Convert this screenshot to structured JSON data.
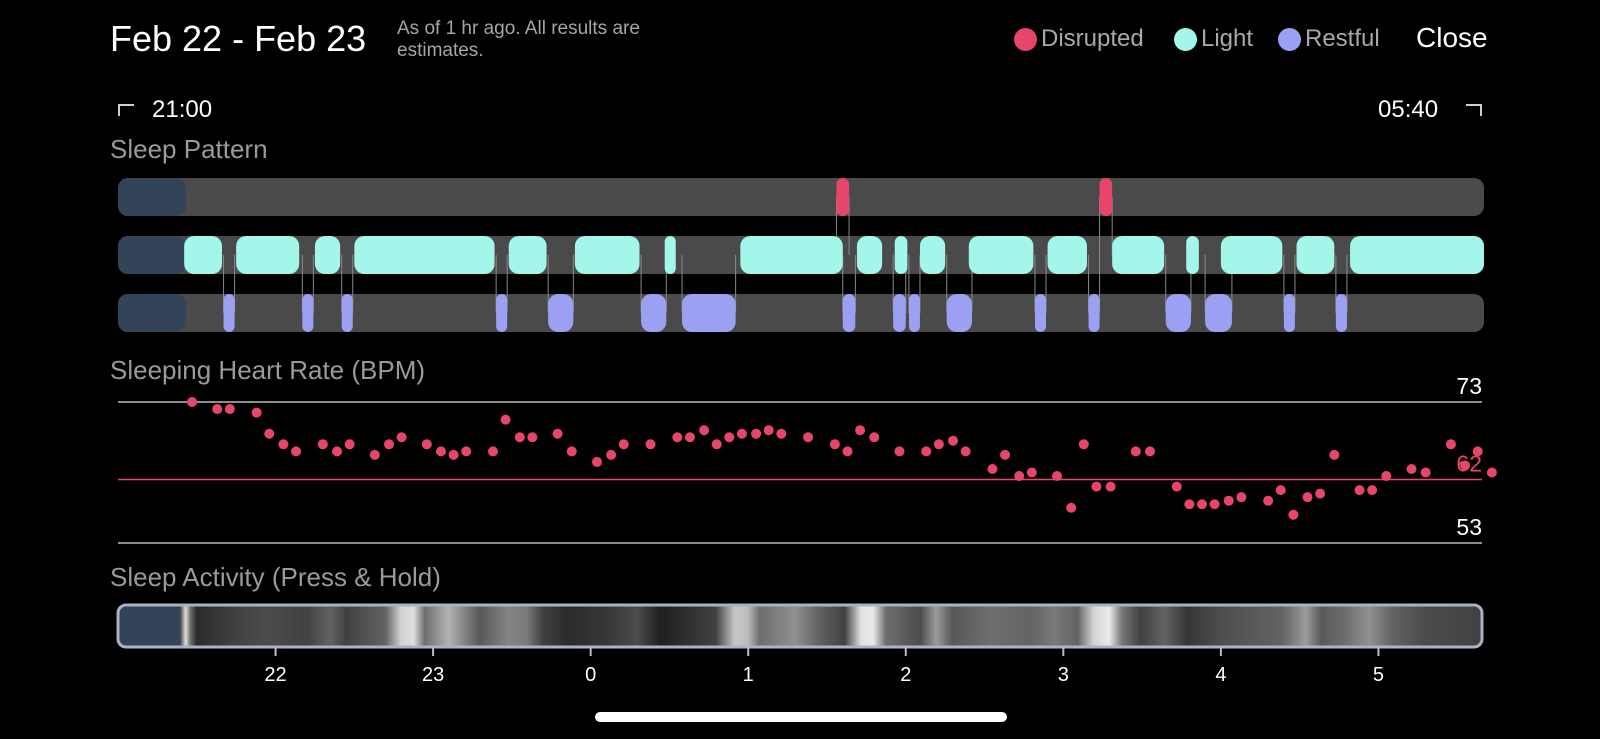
{
  "header": {
    "title": "Feb 22 - Feb 23",
    "subtitle": "As of 1 hr ago. All results are estimates.",
    "close_label": "Close"
  },
  "legend": [
    {
      "label": "Disrupted",
      "color": "#e8456a"
    },
    {
      "label": "Light",
      "color": "#a3f7ea"
    },
    {
      "label": "Restful",
      "color": "#9ba0f2"
    }
  ],
  "time_range": {
    "start": "21:00",
    "end": "05:40"
  },
  "sections": {
    "sleep_pattern": "Sleep Pattern",
    "heart_rate": "Sleeping Heart Rate (BPM)",
    "activity": "Sleep Activity (Press & Hold)"
  },
  "chart_data": [
    {
      "type": "timeline",
      "x_unit": "hours since 21:00",
      "xlim": [
        0,
        8.67
      ],
      "rows": [
        {
          "name": "Disrupted",
          "color": "#e8456a",
          "segments": [
            [
              4.56,
              4.64
            ],
            [
              6.23,
              6.31
            ]
          ]
        },
        {
          "name": "Light",
          "color": "#a3f7ea",
          "segments": [
            [
              0.42,
              0.66
            ],
            [
              0.75,
              1.15
            ],
            [
              1.25,
              1.41
            ],
            [
              1.5,
              2.39
            ],
            [
              2.48,
              2.72
            ],
            [
              2.9,
              3.31
            ],
            [
              3.47,
              3.54
            ],
            [
              3.95,
              4.6
            ],
            [
              4.69,
              4.85
            ],
            [
              4.93,
              5.01
            ],
            [
              5.09,
              5.25
            ],
            [
              5.4,
              5.81
            ],
            [
              5.9,
              6.15
            ],
            [
              6.31,
              6.64
            ],
            [
              6.78,
              6.86
            ],
            [
              7.0,
              7.39
            ],
            [
              7.48,
              7.72
            ],
            [
              7.82,
              8.67
            ]
          ]
        },
        {
          "name": "Restful",
          "color": "#9ba0f2",
          "segments": [
            [
              0.67,
              0.74
            ],
            [
              1.17,
              1.24
            ],
            [
              1.42,
              1.49
            ],
            [
              2.4,
              2.47
            ],
            [
              2.73,
              2.89
            ],
            [
              3.32,
              3.48
            ],
            [
              3.58,
              3.92
            ],
            [
              4.6,
              4.68
            ],
            [
              4.92,
              5.0
            ],
            [
              5.02,
              5.09
            ],
            [
              5.26,
              5.42
            ],
            [
              5.82,
              5.89
            ],
            [
              6.16,
              6.23
            ],
            [
              6.65,
              6.81
            ],
            [
              6.9,
              7.07
            ],
            [
              7.4,
              7.47
            ],
            [
              7.73,
              7.8
            ]
          ]
        }
      ]
    },
    {
      "type": "scatter",
      "title": "Sleeping Heart Rate (BPM)",
      "ylim": [
        53,
        73
      ],
      "reference_lines": [
        73,
        62,
        53
      ],
      "highlight_value": 62,
      "color": "#e8456a",
      "x_unit": "hours since 21:00",
      "xlim": [
        0,
        8.67
      ],
      "points": [
        [
          0.47,
          73
        ],
        [
          0.63,
          72
        ],
        [
          0.71,
          72
        ],
        [
          0.88,
          71.5
        ],
        [
          0.96,
          68.5
        ],
        [
          1.05,
          67
        ],
        [
          1.13,
          66
        ],
        [
          1.3,
          67
        ],
        [
          1.39,
          66
        ],
        [
          1.47,
          67
        ],
        [
          1.63,
          65.5
        ],
        [
          1.72,
          67
        ],
        [
          1.8,
          68
        ],
        [
          1.96,
          67
        ],
        [
          2.05,
          66
        ],
        [
          2.13,
          65.5
        ],
        [
          2.21,
          66
        ],
        [
          2.38,
          66
        ],
        [
          2.46,
          70.5
        ],
        [
          2.55,
          68
        ],
        [
          2.63,
          68
        ],
        [
          2.79,
          68.5
        ],
        [
          2.88,
          66
        ],
        [
          3.04,
          64.5
        ],
        [
          3.13,
          65.5
        ],
        [
          3.21,
          67
        ],
        [
          3.38,
          67
        ],
        [
          3.55,
          68
        ],
        [
          3.63,
          68
        ],
        [
          3.72,
          69
        ],
        [
          3.8,
          67
        ],
        [
          3.88,
          68
        ],
        [
          3.96,
          68.5
        ],
        [
          4.05,
          68.5
        ],
        [
          4.13,
          69
        ],
        [
          4.21,
          68.5
        ],
        [
          4.38,
          68
        ],
        [
          4.55,
          67
        ],
        [
          4.63,
          66
        ],
        [
          4.71,
          69
        ],
        [
          4.8,
          68
        ],
        [
          4.96,
          66
        ],
        [
          5.13,
          66
        ],
        [
          5.21,
          67
        ],
        [
          5.3,
          67.5
        ],
        [
          5.38,
          66
        ],
        [
          5.55,
          63.5
        ],
        [
          5.63,
          65.5
        ],
        [
          5.72,
          62.5
        ],
        [
          5.8,
          63
        ],
        [
          5.96,
          62.5
        ],
        [
          6.05,
          58
        ],
        [
          6.13,
          67
        ],
        [
          6.21,
          61
        ],
        [
          6.3,
          61
        ],
        [
          6.46,
          66
        ],
        [
          6.55,
          66
        ],
        [
          6.72,
          61
        ],
        [
          6.8,
          58.5
        ],
        [
          6.88,
          58.5
        ],
        [
          6.96,
          58.5
        ],
        [
          7.05,
          59
        ],
        [
          7.13,
          59.5
        ],
        [
          7.3,
          59
        ],
        [
          7.38,
          60.5
        ],
        [
          7.46,
          57
        ],
        [
          7.55,
          59.5
        ],
        [
          7.63,
          60
        ],
        [
          7.72,
          65.5
        ],
        [
          7.88,
          60.5
        ],
        [
          7.96,
          60.5
        ],
        [
          8.05,
          62.5
        ],
        [
          8.21,
          63.5
        ],
        [
          8.3,
          63
        ],
        [
          8.46,
          67
        ],
        [
          8.55,
          64
        ],
        [
          8.63,
          66
        ],
        [
          8.72,
          63
        ]
      ]
    },
    {
      "type": "heatmap",
      "title": "Sleep Activity (Press & Hold)",
      "x_unit": "hours since 21:00",
      "xlim": [
        0,
        8.67
      ],
      "intensity_stops": [
        [
          0,
          0
        ],
        [
          0.38,
          0.05
        ],
        [
          0.4,
          0.3
        ],
        [
          0.43,
          0.9
        ],
        [
          0.46,
          0.4
        ],
        [
          0.5,
          0.1
        ],
        [
          0.75,
          0.2
        ],
        [
          0.95,
          0.25
        ],
        [
          1.2,
          0.2
        ],
        [
          1.35,
          0.35
        ],
        [
          1.45,
          0.2
        ],
        [
          1.7,
          0.35
        ],
        [
          1.8,
          0.85
        ],
        [
          1.88,
          0.9
        ],
        [
          1.95,
          0.4
        ],
        [
          2.1,
          0.7
        ],
        [
          2.2,
          0.5
        ],
        [
          2.3,
          0.3
        ],
        [
          2.48,
          0.5
        ],
        [
          2.6,
          0.45
        ],
        [
          2.7,
          0.2
        ],
        [
          2.85,
          0.1
        ],
        [
          3.1,
          0.15
        ],
        [
          3.3,
          0.25
        ],
        [
          3.45,
          0.05
        ],
        [
          3.8,
          0.2
        ],
        [
          3.92,
          0.8
        ],
        [
          4.0,
          0.75
        ],
        [
          4.08,
          0.4
        ],
        [
          4.3,
          0.55
        ],
        [
          4.45,
          0.35
        ],
        [
          4.62,
          0.2
        ],
        [
          4.72,
          0.9
        ],
        [
          4.8,
          0.95
        ],
        [
          4.88,
          0.4
        ],
        [
          5.1,
          0.25
        ],
        [
          5.2,
          0.6
        ],
        [
          5.3,
          0.3
        ],
        [
          5.55,
          0.4
        ],
        [
          5.8,
          0.35
        ],
        [
          5.95,
          0.45
        ],
        [
          6.1,
          0.35
        ],
        [
          6.2,
          0.85
        ],
        [
          6.3,
          0.95
        ],
        [
          6.38,
          0.45
        ],
        [
          6.5,
          0.2
        ],
        [
          6.65,
          0.35
        ],
        [
          6.8,
          0.15
        ],
        [
          7.0,
          0.25
        ],
        [
          7.2,
          0.3
        ],
        [
          7.4,
          0.35
        ],
        [
          7.55,
          0.6
        ],
        [
          7.65,
          0.3
        ],
        [
          7.8,
          0.4
        ],
        [
          7.95,
          0.55
        ],
        [
          8.1,
          0.35
        ],
        [
          8.3,
          0.25
        ],
        [
          8.67,
          0.2
        ]
      ]
    }
  ],
  "x_axis_ticks": [
    "22",
    "23",
    "0",
    "1",
    "2",
    "3",
    "4",
    "5"
  ]
}
